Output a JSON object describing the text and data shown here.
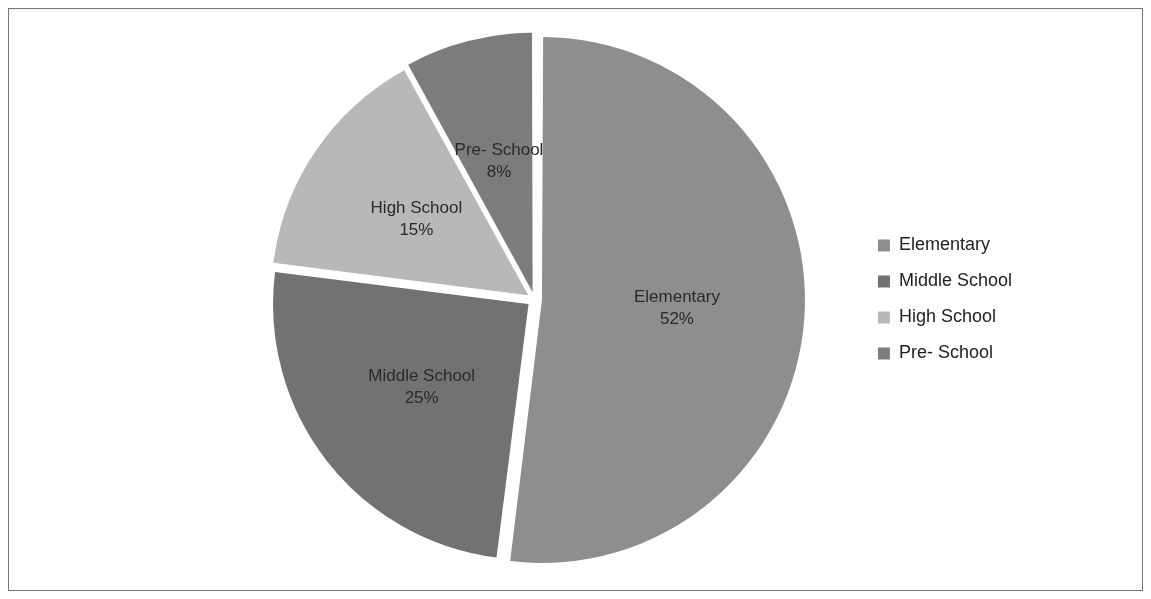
{
  "chart_data": {
    "type": "pie",
    "categories": [
      "Elementary",
      "Middle School",
      "High School",
      "Pre- School"
    ],
    "values": [
      52,
      25,
      15,
      8
    ],
    "value_labels": [
      "52%",
      "25%",
      "15%",
      "8%"
    ],
    "colors": [
      "#8e8e8e",
      "#727272",
      "#b8b8b8",
      "#7c7c7c"
    ],
    "legend": "right"
  }
}
